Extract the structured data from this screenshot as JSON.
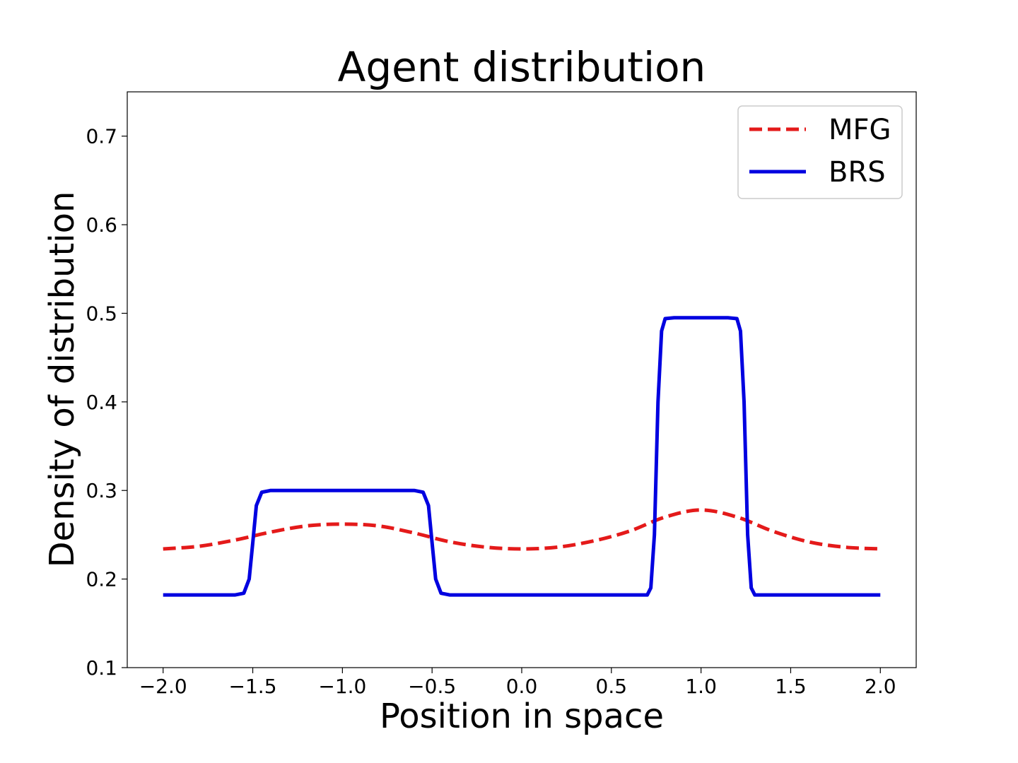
{
  "chart_data": {
    "type": "line",
    "title": "Agent distribution",
    "xlabel": "Position in space",
    "ylabel": "Density of distribution",
    "xlim": [
      -2.2,
      2.2
    ],
    "ylim": [
      0.1,
      0.75
    ],
    "xticks": [
      -2.0,
      -1.5,
      -1.0,
      -0.5,
      0.0,
      0.5,
      1.0,
      1.5,
      2.0
    ],
    "xtick_labels": [
      "−2.0",
      "−1.5",
      "−1.0",
      "−0.5",
      "0.0",
      "0.5",
      "1.0",
      "1.5",
      "2.0"
    ],
    "yticks": [
      0.1,
      0.2,
      0.3,
      0.4,
      0.5,
      0.6,
      0.7
    ],
    "ytick_labels": [
      "0.1",
      "0.2",
      "0.3",
      "0.4",
      "0.5",
      "0.6",
      "0.7"
    ],
    "grid": false,
    "legend_position": "top-right",
    "series": [
      {
        "name": "MFG",
        "color": "#e41a1a",
        "style": "dashed",
        "x": [
          -2.0,
          -1.8,
          -1.6,
          -1.4,
          -1.2,
          -1.0,
          -0.8,
          -0.6,
          -0.4,
          -0.2,
          0.0,
          0.2,
          0.4,
          0.6,
          0.8,
          1.0,
          1.2,
          1.4,
          1.6,
          1.8,
          2.0
        ],
        "y": [
          0.234,
          0.237,
          0.244,
          0.253,
          0.26,
          0.262,
          0.26,
          0.252,
          0.242,
          0.236,
          0.234,
          0.236,
          0.243,
          0.254,
          0.27,
          0.278,
          0.27,
          0.254,
          0.242,
          0.236,
          0.234
        ]
      },
      {
        "name": "BRS",
        "color": "#0000e0",
        "style": "solid",
        "x": [
          -2.0,
          -1.6,
          -1.55,
          -1.52,
          -1.5,
          -1.48,
          -1.45,
          -1.4,
          -0.6,
          -0.55,
          -0.52,
          -0.5,
          -0.48,
          -0.45,
          -0.4,
          0.7,
          0.72,
          0.74,
          0.76,
          0.78,
          0.8,
          0.85,
          1.15,
          1.2,
          1.22,
          1.24,
          1.26,
          1.28,
          1.3,
          1.4,
          2.0
        ],
        "y": [
          0.182,
          0.182,
          0.184,
          0.2,
          0.241,
          0.283,
          0.298,
          0.3,
          0.3,
          0.298,
          0.283,
          0.241,
          0.2,
          0.184,
          0.182,
          0.182,
          0.19,
          0.25,
          0.4,
          0.48,
          0.494,
          0.495,
          0.495,
          0.494,
          0.48,
          0.4,
          0.25,
          0.19,
          0.182,
          0.182,
          0.182
        ]
      }
    ]
  }
}
